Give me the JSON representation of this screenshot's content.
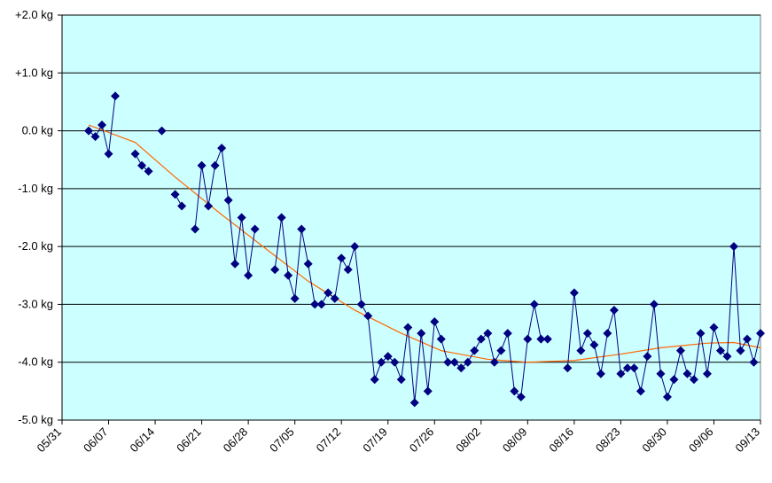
{
  "chart_data": {
    "type": "line",
    "x": [
      "06/04",
      "06/05",
      "06/06",
      "06/07",
      "06/08",
      "06/09",
      "06/10",
      "06/11",
      "06/12",
      "06/13",
      "06/14",
      "06/15",
      "06/16",
      "06/17",
      "06/18",
      "06/19",
      "06/20",
      "06/21",
      "06/22",
      "06/23",
      "06/24",
      "06/25",
      "06/26",
      "06/27",
      "06/28",
      "06/29",
      "06/30",
      "07/01",
      "07/02",
      "07/03",
      "07/04",
      "07/05",
      "07/06",
      "07/07",
      "07/08",
      "07/09",
      "07/10",
      "07/11",
      "07/12",
      "07/13",
      "07/14",
      "07/15",
      "07/16",
      "07/17",
      "07/18",
      "07/19",
      "07/20",
      "07/21",
      "07/22",
      "07/23",
      "07/24",
      "07/25",
      "07/26",
      "07/27",
      "07/28",
      "07/29",
      "07/30",
      "07/31",
      "08/01",
      "08/02",
      "08/03",
      "08/04",
      "08/05",
      "08/06",
      "08/07",
      "08/08",
      "08/09",
      "08/10",
      "08/11",
      "08/12",
      "08/13",
      "08/14",
      "08/15",
      "08/16",
      "08/17",
      "08/18",
      "08/19",
      "08/20",
      "08/21",
      "08/22",
      "08/23",
      "08/24",
      "08/25",
      "08/26",
      "08/27",
      "08/28",
      "08/29",
      "08/30",
      "08/31",
      "09/01",
      "09/02",
      "09/03",
      "09/04",
      "09/05",
      "09/06",
      "09/07",
      "09/08",
      "09/09",
      "09/10",
      "09/11",
      "09/12",
      "09/13"
    ],
    "series": [
      {
        "color": "#000080",
        "values": [
          0,
          -0.1,
          0.1,
          -0.4,
          0.6,
          null,
          null,
          -0.4,
          -0.6,
          -0.7,
          null,
          0,
          null,
          -1.1,
          -1.3,
          null,
          -1.7,
          -0.6,
          -1.3,
          -0.6,
          -0.3,
          -1.2,
          -2.3,
          -1.5,
          -2.5,
          -1.7,
          null,
          null,
          -2.4,
          -1.5,
          -2.5,
          -2.9,
          -1.7,
          -2.3,
          -3.0,
          -3.0,
          -2.8,
          -2.9,
          -2.2,
          -2.4,
          -2.0,
          -3.0,
          -3.2,
          -4.3,
          -4.0,
          -3.9,
          -4.0,
          -4.3,
          -3.4,
          -4.7,
          -3.5,
          -4.5,
          -3.3,
          -3.6,
          -4.0,
          -4.0,
          -4.1,
          -4.0,
          -3.8,
          -3.6,
          -3.5,
          -4.0,
          -3.8,
          -3.5,
          -4.5,
          -4.6,
          -3.6,
          -3.0,
          -3.6,
          -3.6,
          null,
          null,
          -4.1,
          -2.8,
          -3.8,
          -3.5,
          -3.7,
          -4.2,
          -3.5,
          -3.1,
          -4.2,
          -4.1,
          -4.1,
          -4.5,
          -3.9,
          -3.0,
          -4.2,
          -4.6,
          -4.3,
          -3.8,
          -4.2,
          -4.3,
          -3.5,
          -4.2,
          -3.4,
          -3.8,
          -3.9,
          -2.0,
          -3.8,
          -3.6,
          -4.0,
          -3.5
        ]
      }
    ],
    "trend": {
      "color": "#ff6600",
      "x": [
        "06/04",
        "06/11",
        "06/17",
        "06/24",
        "07/01",
        "07/07",
        "07/14",
        "07/21",
        "07/27",
        "08/03",
        "08/09",
        "08/16",
        "08/23",
        "08/29",
        "09/05",
        "09/09",
        "09/13"
      ],
      "values": [
        0.1,
        -0.2,
        -0.8,
        -1.45,
        -2.07,
        -2.6,
        -3.1,
        -3.5,
        -3.8,
        -3.95,
        -4.0,
        -3.97,
        -3.86,
        -3.75,
        -3.67,
        -3.66,
        -3.75
      ]
    },
    "xlim": [
      "05/31",
      "09/13"
    ],
    "xticks": [
      "05/31",
      "06/07",
      "06/14",
      "06/21",
      "06/28",
      "07/05",
      "07/12",
      "07/19",
      "07/26",
      "08/02",
      "08/09",
      "08/16",
      "08/23",
      "08/30",
      "09/06",
      "09/13"
    ],
    "ylim": [
      -5,
      2
    ],
    "yticks": [
      {
        "value": 2,
        "label": "+2.0 kg"
      },
      {
        "value": 1,
        "label": "+1.0 kg"
      },
      {
        "value": 0,
        "label": "0.0 kg"
      },
      {
        "value": -1,
        "label": "-1.0 kg"
      },
      {
        "value": -2,
        "label": "-2.0 kg"
      },
      {
        "value": -3,
        "label": "-3.0 kg"
      },
      {
        "value": -4,
        "label": "-4.0 kg"
      },
      {
        "value": -5,
        "label": "-5.0 kg"
      }
    ],
    "grid": true,
    "plot_background": "#ccffff"
  }
}
